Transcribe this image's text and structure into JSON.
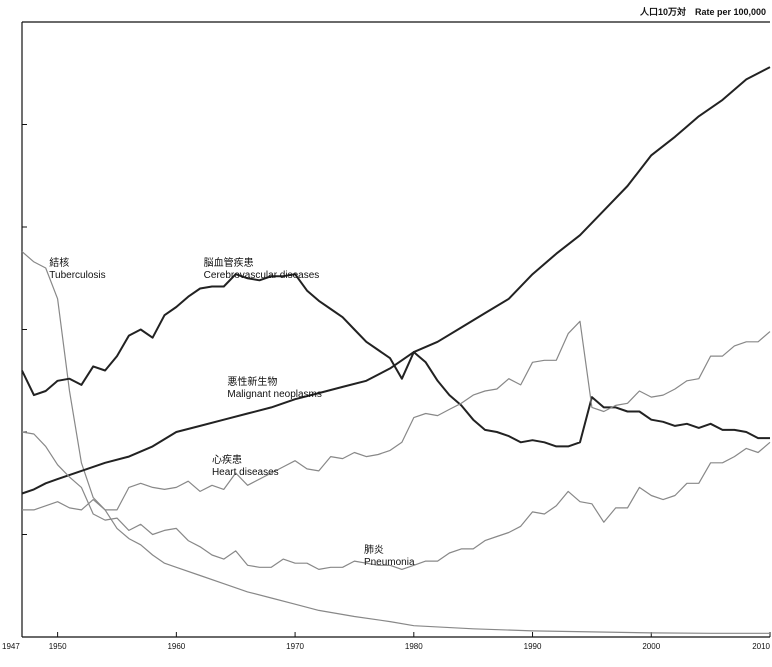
{
  "chart_data": {
    "type": "line",
    "title": "",
    "unit_label": "人口10万対　Rate per 100,000",
    "xlabel": "",
    "ylabel": "",
    "xlim": [
      1947,
      2010
    ],
    "ylim": [
      0,
      300
    ],
    "x_ticks": [
      {
        "value": 1947,
        "label": "1947"
      },
      {
        "value": 1950,
        "label": "1950"
      },
      {
        "value": 1960,
        "label": "1960"
      },
      {
        "value": 1970,
        "label": "1970"
      },
      {
        "value": 1980,
        "label": "1980"
      },
      {
        "value": 1990,
        "label": "1990"
      },
      {
        "value": 2000,
        "label": "2000"
      },
      {
        "value": 2010,
        "label": "2010"
      }
    ],
    "y_ticks": [
      50,
      100,
      150,
      200,
      250
    ],
    "grid": false,
    "series": [
      {
        "name_ja": "結核",
        "name": "Tuberculosis",
        "label_pos": [
          1949.3,
          181
        ],
        "color": "#888888",
        "width": 1.2,
        "points": [
          [
            1947,
            188
          ],
          [
            1948,
            183
          ],
          [
            1949,
            180
          ],
          [
            1950,
            165
          ],
          [
            1951,
            120
          ],
          [
            1952,
            85
          ],
          [
            1953,
            68
          ],
          [
            1954,
            62
          ],
          [
            1955,
            53
          ],
          [
            1956,
            48
          ],
          [
            1957,
            45
          ],
          [
            1958,
            40
          ],
          [
            1959,
            36
          ],
          [
            1960,
            34
          ],
          [
            1962,
            30
          ],
          [
            1964,
            26
          ],
          [
            1966,
            22
          ],
          [
            1968,
            19
          ],
          [
            1970,
            16
          ],
          [
            1972,
            13
          ],
          [
            1975,
            10
          ],
          [
            1978,
            7.5
          ],
          [
            1980,
            5.5
          ],
          [
            1985,
            4
          ],
          [
            1990,
            3
          ],
          [
            1995,
            2.5
          ],
          [
            2000,
            2
          ],
          [
            2005,
            1.8
          ],
          [
            2010,
            1.8
          ]
        ]
      },
      {
        "name_ja": "脳血管疾患",
        "name": "Cerebrovascular diseases",
        "label_pos": [
          1962.3,
          181
        ],
        "color": "#222222",
        "width": 2,
        "points": [
          [
            1947,
            130
          ],
          [
            1948,
            118
          ],
          [
            1949,
            120
          ],
          [
            1950,
            125
          ],
          [
            1951,
            126
          ],
          [
            1952,
            123
          ],
          [
            1953,
            132
          ],
          [
            1954,
            130
          ],
          [
            1955,
            137
          ],
          [
            1956,
            147
          ],
          [
            1957,
            150
          ],
          [
            1958,
            146
          ],
          [
            1959,
            157
          ],
          [
            1960,
            161
          ],
          [
            1961,
            166
          ],
          [
            1962,
            170
          ],
          [
            1963,
            171
          ],
          [
            1964,
            171
          ],
          [
            1965,
            177
          ],
          [
            1966,
            175
          ],
          [
            1967,
            174
          ],
          [
            1968,
            176
          ],
          [
            1969,
            176
          ],
          [
            1970,
            177
          ],
          [
            1971,
            169
          ],
          [
            1972,
            164
          ],
          [
            1973,
            160
          ],
          [
            1974,
            156
          ],
          [
            1975,
            150
          ],
          [
            1976,
            144
          ],
          [
            1977,
            140
          ],
          [
            1978,
            136
          ],
          [
            1979,
            126
          ],
          [
            1980,
            139
          ],
          [
            1981,
            134
          ],
          [
            1982,
            125
          ],
          [
            1983,
            118
          ],
          [
            1984,
            113
          ],
          [
            1985,
            106
          ],
          [
            1986,
            101
          ],
          [
            1987,
            100
          ],
          [
            1988,
            98
          ],
          [
            1989,
            95
          ],
          [
            1990,
            96
          ],
          [
            1991,
            95
          ],
          [
            1992,
            93
          ],
          [
            1993,
            93
          ],
          [
            1994,
            95
          ],
          [
            1995,
            117
          ],
          [
            1996,
            112
          ],
          [
            1997,
            112
          ],
          [
            1998,
            110
          ],
          [
            1999,
            110
          ],
          [
            2000,
            106
          ],
          [
            2001,
            105
          ],
          [
            2002,
            103
          ],
          [
            2003,
            104
          ],
          [
            2004,
            102
          ],
          [
            2005,
            104
          ],
          [
            2006,
            101
          ],
          [
            2007,
            101
          ],
          [
            2008,
            100
          ],
          [
            2009,
            97
          ],
          [
            2010,
            97
          ]
        ]
      },
      {
        "name_ja": "悪性新生物",
        "name": "Malignant neoplasms",
        "label_pos": [
          1964.3,
          123
        ],
        "color": "#222222",
        "width": 2,
        "points": [
          [
            1947,
            70
          ],
          [
            1948,
            72
          ],
          [
            1949,
            75
          ],
          [
            1950,
            77
          ],
          [
            1952,
            81
          ],
          [
            1954,
            85
          ],
          [
            1956,
            88
          ],
          [
            1958,
            93
          ],
          [
            1960,
            100
          ],
          [
            1962,
            103
          ],
          [
            1964,
            106
          ],
          [
            1966,
            109
          ],
          [
            1968,
            112
          ],
          [
            1970,
            116
          ],
          [
            1972,
            119
          ],
          [
            1974,
            122
          ],
          [
            1976,
            125
          ],
          [
            1978,
            131
          ],
          [
            1980,
            139
          ],
          [
            1982,
            144
          ],
          [
            1984,
            151
          ],
          [
            1986,
            158
          ],
          [
            1988,
            165
          ],
          [
            1990,
            177
          ],
          [
            1992,
            187
          ],
          [
            1994,
            196
          ],
          [
            1996,
            208
          ],
          [
            1998,
            220
          ],
          [
            2000,
            235
          ],
          [
            2002,
            244
          ],
          [
            2004,
            254
          ],
          [
            2006,
            262
          ],
          [
            2008,
            272
          ],
          [
            2010,
            278
          ]
        ]
      },
      {
        "name_ja": "心疾患",
        "name": "Heart diseases",
        "label_pos": [
          1963,
          85
        ],
        "color": "#888888",
        "width": 1.2,
        "points": [
          [
            1947,
            62
          ],
          [
            1948,
            62
          ],
          [
            1949,
            64
          ],
          [
            1950,
            66
          ],
          [
            1951,
            63
          ],
          [
            1952,
            62
          ],
          [
            1953,
            67
          ],
          [
            1954,
            62
          ],
          [
            1955,
            62
          ],
          [
            1956,
            73
          ],
          [
            1957,
            75
          ],
          [
            1958,
            73
          ],
          [
            1959,
            72
          ],
          [
            1960,
            73
          ],
          [
            1961,
            76
          ],
          [
            1962,
            71
          ],
          [
            1963,
            74
          ],
          [
            1964,
            72
          ],
          [
            1965,
            80
          ],
          [
            1966,
            74
          ],
          [
            1967,
            77
          ],
          [
            1968,
            80
          ],
          [
            1969,
            83
          ],
          [
            1970,
            86
          ],
          [
            1971,
            82
          ],
          [
            1972,
            81
          ],
          [
            1973,
            88
          ],
          [
            1974,
            87
          ],
          [
            1975,
            90
          ],
          [
            1976,
            88
          ],
          [
            1977,
            89
          ],
          [
            1978,
            91
          ],
          [
            1979,
            95
          ],
          [
            1980,
            107
          ],
          [
            1981,
            109
          ],
          [
            1982,
            108
          ],
          [
            1983,
            111
          ],
          [
            1984,
            114
          ],
          [
            1985,
            118
          ],
          [
            1986,
            120
          ],
          [
            1987,
            121
          ],
          [
            1988,
            126
          ],
          [
            1989,
            123
          ],
          [
            1990,
            134
          ],
          [
            1991,
            135
          ],
          [
            1992,
            135
          ],
          [
            1993,
            148
          ],
          [
            1994,
            154
          ],
          [
            1995,
            112
          ],
          [
            1996,
            110
          ],
          [
            1997,
            113
          ],
          [
            1998,
            114
          ],
          [
            1999,
            120
          ],
          [
            2000,
            117
          ],
          [
            2001,
            118
          ],
          [
            2002,
            121
          ],
          [
            2003,
            125
          ],
          [
            2004,
            126
          ],
          [
            2005,
            137
          ],
          [
            2006,
            137
          ],
          [
            2007,
            142
          ],
          [
            2008,
            144
          ],
          [
            2009,
            144
          ],
          [
            2010,
            149
          ]
        ]
      },
      {
        "name_ja": "肺炎",
        "name": "Pneumonia",
        "label_pos": [
          1975.8,
          41
        ],
        "color": "#888888",
        "width": 1.2,
        "points": [
          [
            1947,
            100
          ],
          [
            1948,
            99
          ],
          [
            1949,
            93
          ],
          [
            1950,
            84
          ],
          [
            1951,
            78
          ],
          [
            1952,
            73
          ],
          [
            1953,
            60
          ],
          [
            1954,
            57
          ],
          [
            1955,
            58
          ],
          [
            1956,
            52
          ],
          [
            1957,
            55
          ],
          [
            1958,
            50
          ],
          [
            1959,
            52
          ],
          [
            1960,
            53
          ],
          [
            1961,
            47
          ],
          [
            1962,
            44
          ],
          [
            1963,
            40
          ],
          [
            1964,
            38
          ],
          [
            1965,
            42
          ],
          [
            1966,
            35
          ],
          [
            1967,
            34
          ],
          [
            1968,
            34
          ],
          [
            1969,
            38
          ],
          [
            1970,
            36
          ],
          [
            1971,
            36
          ],
          [
            1972,
            33
          ],
          [
            1973,
            34
          ],
          [
            1974,
            34
          ],
          [
            1975,
            37
          ],
          [
            1976,
            36
          ],
          [
            1977,
            35
          ],
          [
            1978,
            35
          ],
          [
            1979,
            33
          ],
          [
            1980,
            35
          ],
          [
            1981,
            37
          ],
          [
            1982,
            37
          ],
          [
            1983,
            41
          ],
          [
            1984,
            43
          ],
          [
            1985,
            43
          ],
          [
            1986,
            47
          ],
          [
            1987,
            49
          ],
          [
            1988,
            51
          ],
          [
            1989,
            54
          ],
          [
            1990,
            61
          ],
          [
            1991,
            60
          ],
          [
            1992,
            64
          ],
          [
            1993,
            71
          ],
          [
            1994,
            66
          ],
          [
            1995,
            65
          ],
          [
            1996,
            56
          ],
          [
            1997,
            63
          ],
          [
            1998,
            63
          ],
          [
            1999,
            73
          ],
          [
            2000,
            69
          ],
          [
            2001,
            67
          ],
          [
            2002,
            69
          ],
          [
            2003,
            75
          ],
          [
            2004,
            75
          ],
          [
            2005,
            85
          ],
          [
            2006,
            85
          ],
          [
            2007,
            88
          ],
          [
            2008,
            92
          ],
          [
            2009,
            90
          ],
          [
            2010,
            95
          ]
        ]
      }
    ]
  }
}
